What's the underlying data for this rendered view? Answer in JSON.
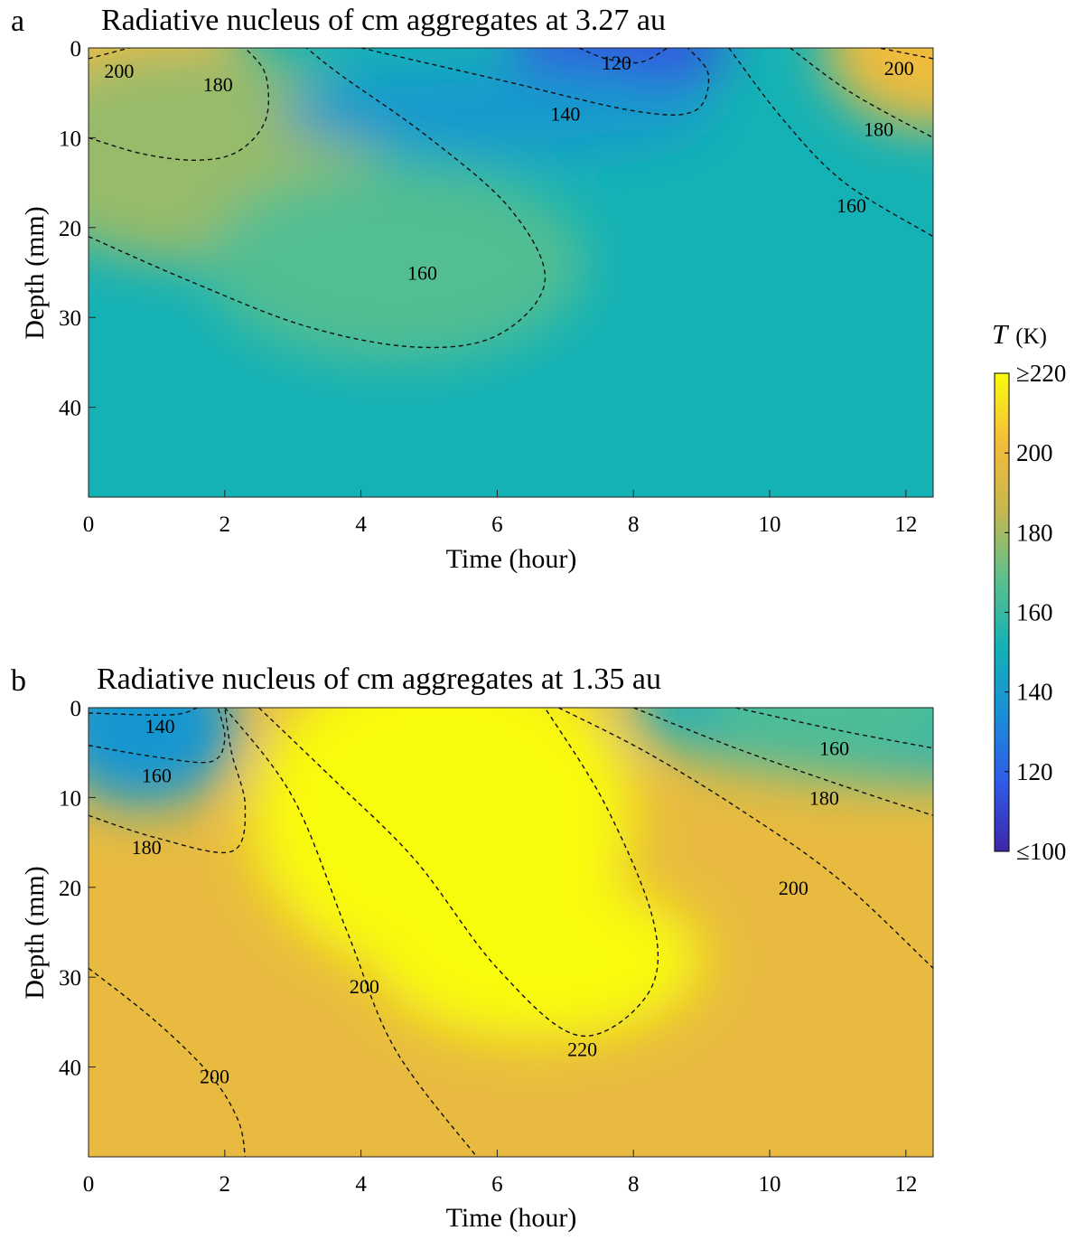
{
  "colorbar": {
    "label_var": "T",
    "label_unit": "(K)",
    "ticks": [
      {
        "value": 220,
        "label": "≥220"
      },
      {
        "value": 200,
        "label": "200"
      },
      {
        "value": 180,
        "label": "180"
      },
      {
        "value": 160,
        "label": "160"
      },
      {
        "value": 140,
        "label": "140"
      },
      {
        "value": 120,
        "label": "120"
      },
      {
        "value": 100,
        "label": "≤100"
      }
    ],
    "range": [
      100,
      220
    ],
    "colormap": [
      "#3e26a8",
      "#2f5ae8",
      "#1a8fd8",
      "#13b1b6",
      "#5dc08c",
      "#c6b74e",
      "#f5bd3a",
      "#f9fb0e"
    ]
  },
  "chart_data": [
    {
      "type": "heatmap",
      "panel_letter": "a",
      "title": "Radiative nucleus of cm aggregates at 3.27 au",
      "xlabel": "Time (hour)",
      "ylabel": "Depth (mm)",
      "xlim": [
        0,
        12.4
      ],
      "ylim": [
        0,
        50
      ],
      "y_reversed": true,
      "xticks": [
        0,
        2,
        4,
        6,
        8,
        10,
        12
      ],
      "yticks": [
        0,
        10,
        20,
        30,
        40
      ],
      "grid": false,
      "hotspots": [
        {
          "t": 0,
          "d": 0,
          "T": 200,
          "wt": 2.3,
          "wd": 9
        },
        {
          "t": 1.5,
          "d": 12,
          "T": 178,
          "wt": 2.8,
          "wd": 12
        },
        {
          "t": 4.5,
          "d": 24,
          "T": 166,
          "wt": 2.8,
          "wd": 11
        },
        {
          "t": 12.4,
          "d": 0,
          "T": 200,
          "wt": 1.6,
          "wd": 9
        },
        {
          "t": 7.8,
          "d": 0,
          "T": 115,
          "wt": 1.6,
          "wd": 5
        },
        {
          "t": 6,
          "d": 7,
          "T": 140,
          "wt": 3.2,
          "wd": 5
        }
      ],
      "background_T": 152,
      "contours": [
        {
          "level": 200,
          "points": [
            [
              0,
              1.2
            ],
            [
              0.6,
              0
            ]
          ]
        },
        {
          "level": 200,
          "points": [
            [
              12.4,
              1.2
            ],
            [
              11.6,
              0
            ]
          ]
        },
        {
          "level": 180,
          "points": [
            [
              0,
              10
            ],
            [
              0.8,
              11.8
            ],
            [
              1.6,
              12.5
            ],
            [
              2.2,
              11.5
            ],
            [
              2.6,
              8
            ],
            [
              2.6,
              3
            ],
            [
              2.3,
              0
            ]
          ]
        },
        {
          "level": 180,
          "points": [
            [
              10.3,
              0
            ],
            [
              11.2,
              5
            ],
            [
              12.4,
              10
            ]
          ]
        },
        {
          "level": 160,
          "points": [
            [
              0,
              21
            ],
            [
              1.5,
              26
            ],
            [
              3.2,
              31
            ],
            [
              4.8,
              33.3
            ],
            [
              6,
              32
            ],
            [
              6.7,
              26
            ],
            [
              6.2,
              18
            ],
            [
              5,
              10
            ],
            [
              3.7,
              3
            ],
            [
              3.2,
              0
            ]
          ]
        },
        {
          "level": 160,
          "points": [
            [
              9.4,
              0
            ],
            [
              10.2,
              8
            ],
            [
              11.1,
              15
            ],
            [
              12.4,
              21
            ]
          ]
        },
        {
          "level": 140,
          "points": [
            [
              4.0,
              0
            ],
            [
              6.0,
              3.5
            ],
            [
              8.0,
              7
            ],
            [
              8.9,
              7
            ],
            [
              9.1,
              3
            ],
            [
              8.8,
              0
            ]
          ]
        },
        {
          "level": 120,
          "points": [
            [
              7.2,
              0
            ],
            [
              7.6,
              1.2
            ],
            [
              8.1,
              1.6
            ],
            [
              8.5,
              0
            ]
          ]
        }
      ],
      "contour_labels": [
        {
          "text": "200",
          "t": 0.45,
          "d": 2.5
        },
        {
          "text": "200",
          "t": 11.9,
          "d": 2.2
        },
        {
          "text": "180",
          "t": 1.9,
          "d": 4.0
        },
        {
          "text": "180",
          "t": 11.6,
          "d": 9.0
        },
        {
          "text": "160",
          "t": 4.9,
          "d": 25.0
        },
        {
          "text": "160",
          "t": 11.2,
          "d": 17.5
        },
        {
          "text": "140",
          "t": 7.0,
          "d": 7.3
        },
        {
          "text": "120",
          "t": 7.75,
          "d": 1.6
        }
      ]
    },
    {
      "type": "heatmap",
      "panel_letter": "b",
      "title": "Radiative nucleus of cm aggregates at 1.35 au",
      "xlabel": "Time (hour)",
      "ylabel": "Depth (mm)",
      "xlim": [
        0,
        12.4
      ],
      "ylim": [
        0,
        50
      ],
      "y_reversed": true,
      "xticks": [
        0,
        2,
        4,
        6,
        8,
        10,
        12
      ],
      "yticks": [
        0,
        10,
        20,
        30,
        40
      ],
      "grid": false,
      "hotspots": [
        {
          "t": 5.2,
          "d": 12,
          "T": 232,
          "wt": 2.8,
          "wd": 18
        },
        {
          "t": 6.6,
          "d": 28,
          "T": 224,
          "wt": 2.4,
          "wd": 9
        },
        {
          "t": 0.8,
          "d": 2,
          "T": 138,
          "wt": 1.4,
          "wd": 9
        },
        {
          "t": 12.4,
          "d": 0,
          "T": 150,
          "wt": 4.5,
          "wd": 8
        },
        {
          "t": 11,
          "d": 0,
          "T": 165,
          "wt": 2,
          "wd": 6
        }
      ],
      "background_T": 198,
      "contours": [
        {
          "level": 140,
          "points": [
            [
              0,
              0.6
            ],
            [
              1.2,
              0.8
            ],
            [
              1.6,
              0
            ]
          ]
        },
        {
          "level": 160,
          "points": [
            [
              0,
              4.2
            ],
            [
              1.0,
              5.5
            ],
            [
              1.8,
              6
            ],
            [
              2.0,
              3.5
            ],
            [
              1.9,
              0
            ]
          ]
        },
        {
          "level": 180,
          "points": [
            [
              0,
              12
            ],
            [
              1.0,
              14.5
            ],
            [
              2.1,
              16
            ],
            [
              2.3,
              11
            ],
            [
              2.1,
              5
            ],
            [
              2.0,
              0
            ]
          ]
        },
        {
          "level": 200,
          "points": [
            [
              0,
              29
            ],
            [
              1.0,
              35
            ],
            [
              1.8,
              41
            ],
            [
              2.2,
              46
            ],
            [
              2.3,
              50
            ]
          ]
        },
        {
          "level": 200,
          "points": [
            [
              2.0,
              0
            ],
            [
              3.0,
              10
            ],
            [
              3.8,
              25
            ],
            [
              4.5,
              38
            ],
            [
              5.7,
              50
            ]
          ]
        },
        {
          "level": 220,
          "points": [
            [
              2.5,
              0
            ],
            [
              3.6,
              8
            ],
            [
              4.8,
              17
            ],
            [
              6.0,
              29
            ],
            [
              7.2,
              36.5
            ],
            [
              8.2,
              32
            ],
            [
              8.3,
              24
            ],
            [
              7.6,
              11
            ],
            [
              6.7,
              0
            ]
          ]
        },
        {
          "level": 200,
          "points": [
            [
              6.9,
              0
            ],
            [
              8.2,
              5
            ],
            [
              9.6,
              11.5
            ],
            [
              11.0,
              19
            ],
            [
              12.4,
              29
            ]
          ]
        },
        {
          "level": 180,
          "points": [
            [
              8.0,
              0
            ],
            [
              9.5,
              4.5
            ],
            [
              11.0,
              8.5
            ],
            [
              12.4,
              12
            ]
          ]
        },
        {
          "level": 160,
          "points": [
            [
              9.5,
              0
            ],
            [
              11,
              2.5
            ],
            [
              12.4,
              4.5
            ]
          ]
        }
      ],
      "contour_labels": [
        {
          "text": "140",
          "t": 1.05,
          "d": 2.0
        },
        {
          "text": "160",
          "t": 1.0,
          "d": 7.5
        },
        {
          "text": "180",
          "t": 0.85,
          "d": 15.5
        },
        {
          "text": "200",
          "t": 1.85,
          "d": 41.0
        },
        {
          "text": "200",
          "t": 4.05,
          "d": 31.0
        },
        {
          "text": "220",
          "t": 7.25,
          "d": 38.0
        },
        {
          "text": "200",
          "t": 10.35,
          "d": 20.0
        },
        {
          "text": "180",
          "t": 10.8,
          "d": 10.0
        },
        {
          "text": "160",
          "t": 10.95,
          "d": 4.5
        }
      ]
    }
  ]
}
